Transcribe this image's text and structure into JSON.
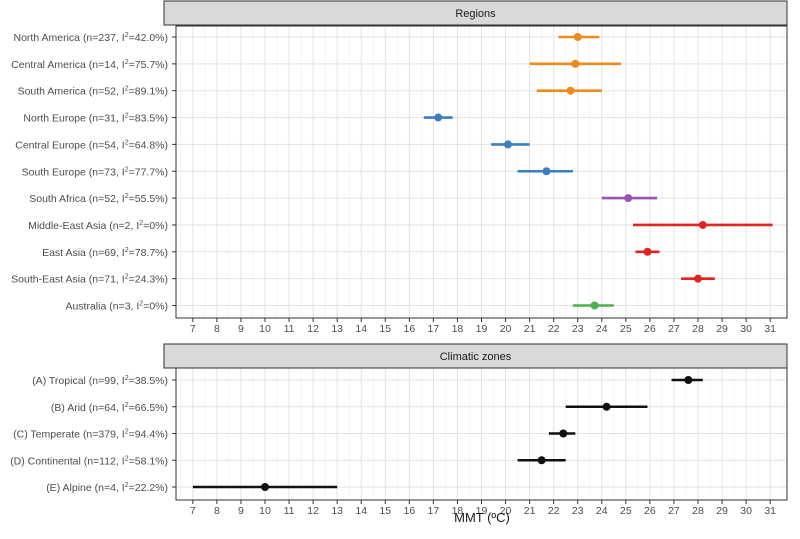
{
  "x_axis_title": "MMT (ºC)",
  "colors": {
    "orange": "#f08a1c",
    "blue": "#3a7fc0",
    "purple": "#9b52b2",
    "red": "#e02424",
    "green": "#4caf50",
    "black": "#111111"
  },
  "chart_data": [
    {
      "type": "forest",
      "title": "Regions",
      "xlabel": "MMT (ºC)",
      "xlim": [
        6.3,
        31.7
      ],
      "xticks": [
        7,
        8,
        9,
        10,
        11,
        12,
        13,
        14,
        15,
        16,
        17,
        18,
        19,
        20,
        21,
        22,
        23,
        24,
        25,
        26,
        27,
        28,
        29,
        30,
        31
      ],
      "grid": true,
      "rows": [
        {
          "name": "North America",
          "n": "237",
          "i2": "42.0%",
          "est": 23.0,
          "lo": 22.2,
          "hi": 23.9,
          "color": "orange"
        },
        {
          "name": "Central America",
          "n": "14",
          "i2": "75.7%",
          "est": 22.9,
          "lo": 21.0,
          "hi": 24.8,
          "color": "orange"
        },
        {
          "name": "South America",
          "n": "52",
          "i2": "89.1%",
          "est": 22.7,
          "lo": 21.3,
          "hi": 24.0,
          "color": "orange"
        },
        {
          "name": "North Europe",
          "n": "31",
          "i2": "83.5%",
          "est": 17.2,
          "lo": 16.6,
          "hi": 17.8,
          "color": "blue"
        },
        {
          "name": "Central Europe",
          "n": "54",
          "i2": "64.8%",
          "est": 20.1,
          "lo": 19.4,
          "hi": 21.0,
          "color": "blue"
        },
        {
          "name": "South Europe",
          "n": "73",
          "i2": "77.7%",
          "est": 21.7,
          "lo": 20.5,
          "hi": 22.8,
          "color": "blue"
        },
        {
          "name": "South Africa",
          "n": "52",
          "i2": "55.5%",
          "est": 25.1,
          "lo": 24.0,
          "hi": 26.3,
          "color": "purple"
        },
        {
          "name": "Middle-East Asia",
          "n": "2",
          "i2": "0%",
          "est": 28.2,
          "lo": 25.3,
          "hi": 31.1,
          "color": "red"
        },
        {
          "name": "East Asia",
          "n": "69",
          "i2": "78.7%",
          "est": 25.9,
          "lo": 25.4,
          "hi": 26.4,
          "color": "red"
        },
        {
          "name": "South-East Asia",
          "n": "71",
          "i2": "24.3%",
          "est": 28.0,
          "lo": 27.3,
          "hi": 28.7,
          "color": "red"
        },
        {
          "name": "Australia",
          "n": "3",
          "i2": "0%",
          "est": 23.7,
          "lo": 22.8,
          "hi": 24.5,
          "color": "green"
        }
      ]
    },
    {
      "type": "forest",
      "title": "Climatic zones",
      "xlabel": "MMT (ºC)",
      "xlim": [
        6.3,
        31.7
      ],
      "xticks": [
        7,
        8,
        9,
        10,
        11,
        12,
        13,
        14,
        15,
        16,
        17,
        18,
        19,
        20,
        21,
        22,
        23,
        24,
        25,
        26,
        27,
        28,
        29,
        30,
        31
      ],
      "grid": true,
      "rows": [
        {
          "name": "(A) Tropical",
          "n": "99",
          "i2": "38.5%",
          "est": 27.6,
          "lo": 26.9,
          "hi": 28.2,
          "color": "black"
        },
        {
          "name": "(B) Arid",
          "n": "64",
          "i2": "66.5%",
          "est": 24.2,
          "lo": 22.5,
          "hi": 25.9,
          "color": "black"
        },
        {
          "name": "(C) Temperate",
          "n": "379",
          "i2": "94.4%",
          "est": 22.4,
          "lo": 21.8,
          "hi": 22.9,
          "color": "black"
        },
        {
          "name": "(D) Continental",
          "n": "112",
          "i2": "58.1%",
          "est": 21.5,
          "lo": 20.5,
          "hi": 22.5,
          "color": "black"
        },
        {
          "name": "(E) Alpine",
          "n": "4",
          "i2": "22.2%",
          "est": 10.0,
          "lo": 7.0,
          "hi": 13.0,
          "color": "black"
        }
      ]
    }
  ]
}
